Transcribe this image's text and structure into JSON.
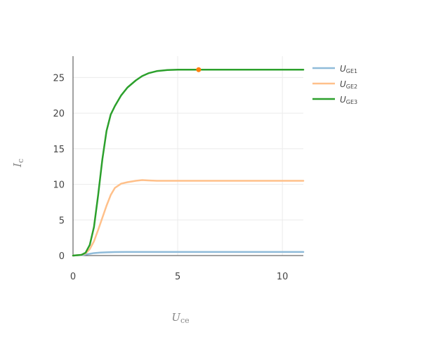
{
  "chart_data": {
    "type": "line",
    "xlabel": {
      "main": "U",
      "sub": "ce"
    },
    "ylabel": {
      "main": "I",
      "sub": "c"
    },
    "xlim": [
      0,
      11
    ],
    "ylim": [
      0,
      28
    ],
    "x_ticks": [
      0,
      5,
      10
    ],
    "y_ticks": [
      0,
      5,
      10,
      15,
      20,
      25
    ],
    "grid": true,
    "legend_position": "top-right",
    "series": [
      {
        "name": "U_GE1",
        "label_main": "U",
        "label_sub": "GE1",
        "color": "#8fbbd9",
        "x": [
          0,
          0.5,
          0.8,
          1.0,
          1.3,
          1.6,
          2.0,
          2.5,
          3.0,
          4.0,
          5.0,
          6.0,
          8.0,
          11.0
        ],
        "y": [
          0,
          0.1,
          0.25,
          0.35,
          0.42,
          0.46,
          0.49,
          0.51,
          0.5,
          0.5,
          0.5,
          0.5,
          0.5,
          0.5
        ]
      },
      {
        "name": "U_GE2",
        "label_main": "U",
        "label_sub": "GE2",
        "color": "#ffc08a",
        "x": [
          0,
          0.4,
          0.6,
          0.8,
          1.0,
          1.2,
          1.4,
          1.6,
          1.8,
          2.0,
          2.3,
          2.6,
          3.0,
          3.3,
          3.6,
          4.0,
          5.0,
          6.0,
          8.0,
          11.0
        ],
        "y": [
          0,
          0.1,
          0.3,
          0.9,
          2.0,
          3.6,
          5.3,
          7.0,
          8.5,
          9.5,
          10.1,
          10.3,
          10.5,
          10.6,
          10.55,
          10.5,
          10.5,
          10.5,
          10.5,
          10.5
        ]
      },
      {
        "name": "U_GE3",
        "label_main": "U",
        "label_sub": "GE3",
        "color": "#2ca02c",
        "x": [
          0,
          0.4,
          0.6,
          0.8,
          1.0,
          1.2,
          1.4,
          1.6,
          1.8,
          2.0,
          2.3,
          2.6,
          3.0,
          3.3,
          3.6,
          4.0,
          4.5,
          5.0,
          5.5,
          6.0,
          8.0,
          11.0
        ],
        "y": [
          0,
          0.1,
          0.4,
          1.5,
          4.0,
          8.5,
          13.5,
          17.5,
          19.8,
          21.0,
          22.5,
          23.6,
          24.6,
          25.2,
          25.6,
          25.9,
          26.05,
          26.1,
          26.1,
          26.1,
          26.1,
          26.1
        ]
      }
    ],
    "highlight_point": {
      "x": 6.0,
      "y": 26.1,
      "color": "#ff7f0e"
    }
  }
}
